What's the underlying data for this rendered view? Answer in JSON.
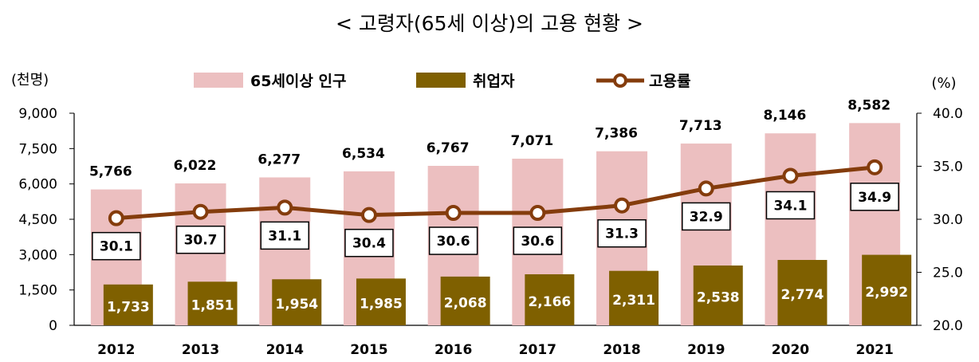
{
  "chart_data": {
    "type": "bar",
    "title": "< 고령자(65세 이상)의 고용 현황 >",
    "y_left_unit": "(천명)",
    "y_right_unit": "(%)",
    "categories": [
      "2012",
      "2013",
      "2014",
      "2015",
      "2016",
      "2017",
      "2018",
      "2019",
      "2020",
      "2021"
    ],
    "y_left": {
      "min": 0,
      "max": 9000,
      "ticks": [
        "0",
        "1,500",
        "3,000",
        "4,500",
        "6,000",
        "7,500",
        "9,000"
      ]
    },
    "y_right": {
      "min": 20.0,
      "max": 40.0,
      "ticks": [
        "20.0",
        "25.0",
        "30.0",
        "35.0",
        "40.0"
      ]
    },
    "series": [
      {
        "name": "65세이상 인구",
        "type": "bar",
        "axis": "left",
        "color": "#ecbfc0",
        "values": [
          5766,
          6022,
          6277,
          6534,
          6767,
          7071,
          7386,
          7713,
          8146,
          8582
        ],
        "labels": [
          "5,766",
          "6,022",
          "6,277",
          "6,534",
          "6,767",
          "7,071",
          "7,386",
          "7,713",
          "8,146",
          "8,582"
        ]
      },
      {
        "name": "취업자",
        "type": "bar",
        "axis": "left",
        "color": "#7f6000",
        "values": [
          1733,
          1851,
          1954,
          1985,
          2068,
          2166,
          2311,
          2538,
          2774,
          2992
        ],
        "labels": [
          "1,733",
          "1,851",
          "1,954",
          "1,985",
          "2,068",
          "2,166",
          "2,311",
          "2,538",
          "2,774",
          "2,992"
        ]
      },
      {
        "name": "고용률",
        "type": "line",
        "axis": "right",
        "color": "#843c0c",
        "values": [
          30.1,
          30.7,
          31.1,
          30.4,
          30.6,
          30.6,
          31.3,
          32.9,
          34.1,
          34.9
        ],
        "labels": [
          "30.1",
          "30.7",
          "31.1",
          "30.4",
          "30.6",
          "30.6",
          "31.3",
          "32.9",
          "34.1",
          "34.9"
        ]
      }
    ],
    "legend_position": "top",
    "grid": false
  }
}
